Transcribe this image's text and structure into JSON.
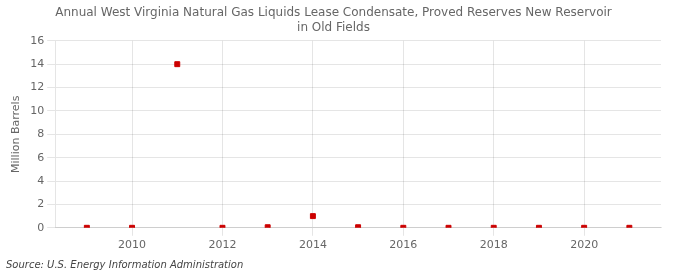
{
  "chart_data": {
    "type": "scatter",
    "title": "Annual West Virginia Natural Gas Liquids Lease Condensate, Proved Reserves New Reservoir\nin Old Fields",
    "y_label": "Million Barrels",
    "source": "Source: U.S. Energy Information Administration",
    "x": [
      2009,
      2010,
      2011,
      2012,
      2013,
      2014,
      2015,
      2016,
      2017,
      2018,
      2019,
      2020,
      2021
    ],
    "values": [
      0.0,
      0.0,
      14.0,
      0.0,
      0.05,
      1.0,
      0.05,
      0.0,
      0.0,
      0.0,
      0.0,
      0.0,
      0.0
    ],
    "color": "#cc0000",
    "marker": "square",
    "xlim": [
      2008.3,
      2021.7
    ],
    "xticks": [
      2010,
      2012,
      2014,
      2016,
      2018,
      2020
    ],
    "ylim": [
      0,
      16
    ],
    "yticks": [
      0,
      2,
      4,
      6,
      8,
      10,
      12,
      14,
      16
    ],
    "grid": true
  }
}
